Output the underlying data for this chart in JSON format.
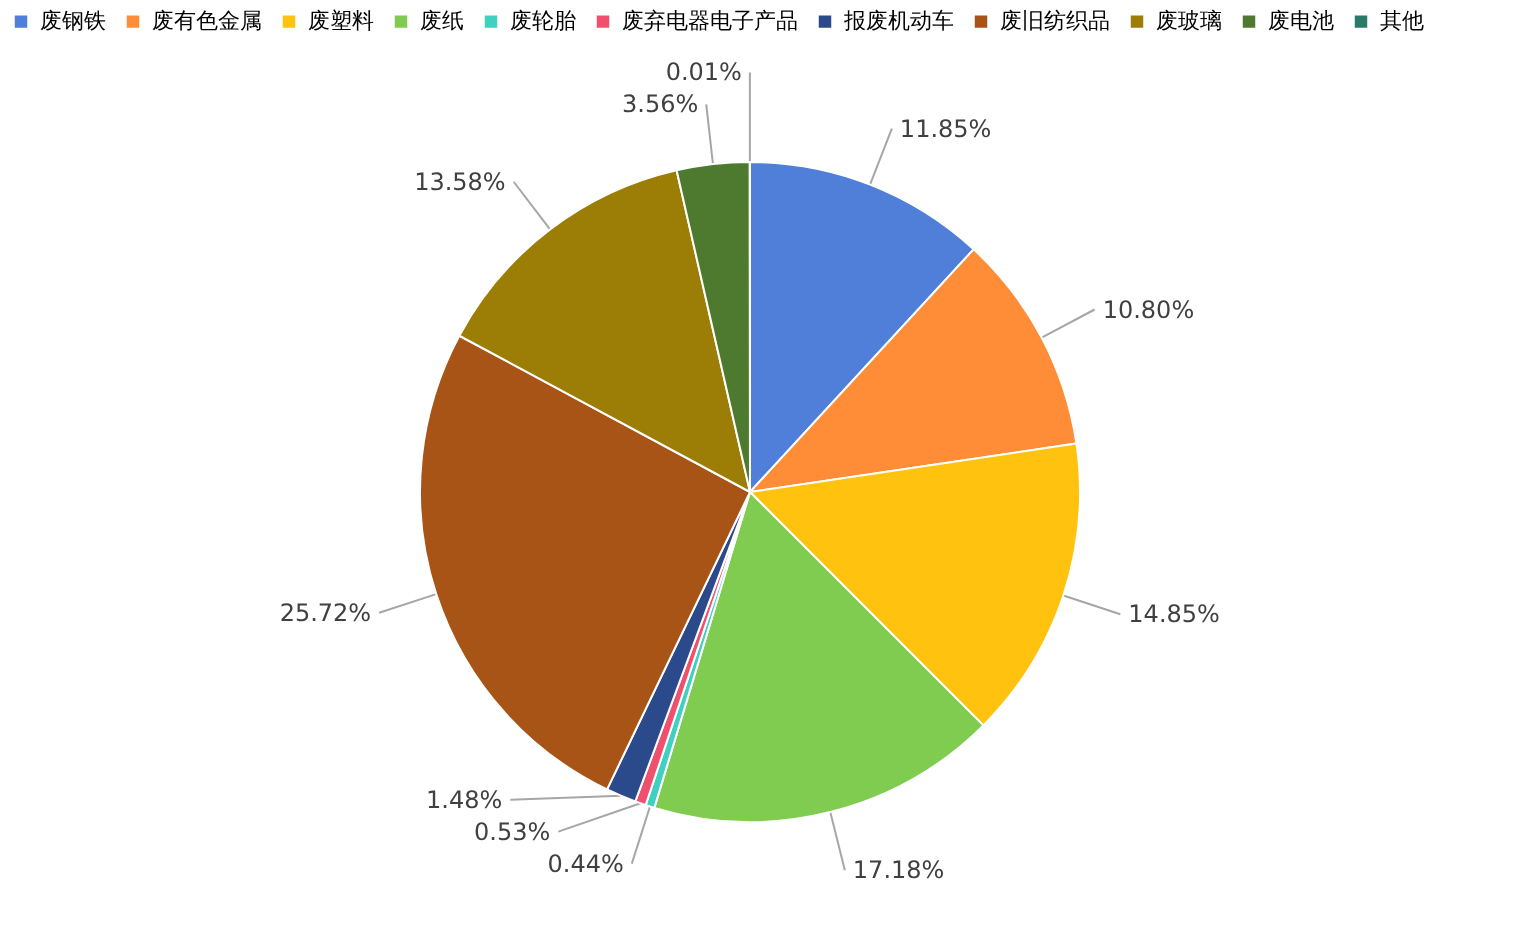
{
  "chart_data": {
    "type": "pie",
    "categories": [
      "废钢铁",
      "废有色金属",
      "废塑料",
      "废纸",
      "废轮胎",
      "废弃电器电子产品",
      "报废机动车",
      "废旧纺织品",
      "废玻璃",
      "废电池",
      "其他"
    ],
    "values": [
      11.85,
      10.8,
      14.85,
      17.18,
      0.44,
      0.53,
      1.48,
      25.72,
      13.58,
      3.56,
      0.01
    ],
    "value_labels": [
      "11.85%",
      "10.80%",
      "14.85%",
      "17.18%",
      "0.44%",
      "0.53%",
      "1.48%",
      "25.72%",
      "13.58%",
      "3.56%",
      "0.01%"
    ],
    "colors": [
      "#4f7fd9",
      "#ff8c37",
      "#ffc20e",
      "#7fcc50",
      "#3fd0c0",
      "#f0506e",
      "#2b4a8c",
      "#a95417",
      "#9c7d05",
      "#4e7a30",
      "#2a7a6a"
    ],
    "legend": "top"
  }
}
